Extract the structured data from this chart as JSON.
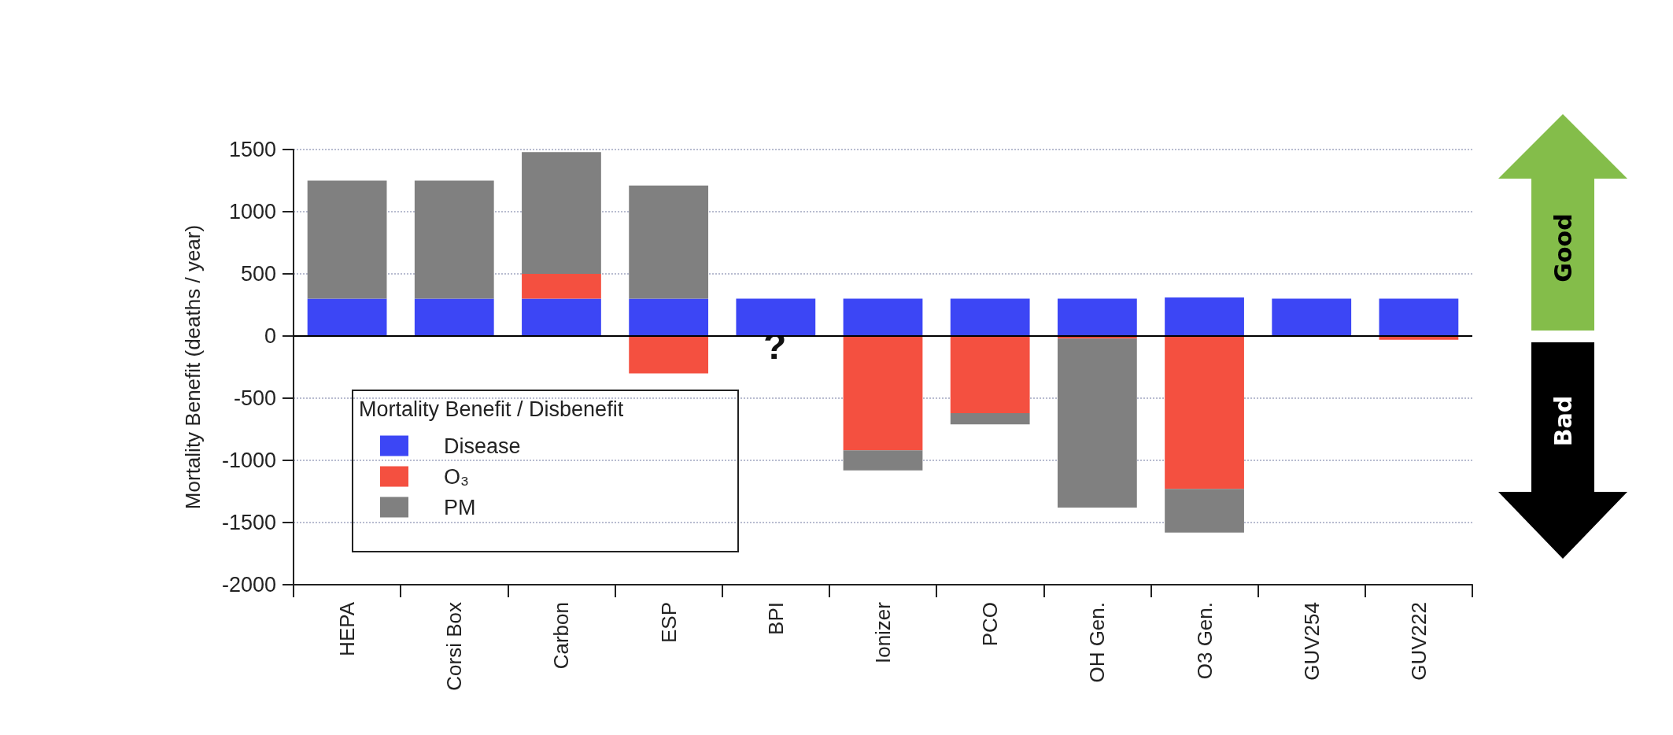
{
  "chart_data": {
    "type": "bar",
    "stacked": true,
    "ylabel": "Mortality Benefit (deaths / year)",
    "legend_title": "Mortality Benefit / Disbenefit",
    "categories": [
      "HEPA",
      "Corsi Box",
      "Carbon",
      "ESP",
      "BPI",
      "Ionizer",
      "PCO",
      "OH Gen.",
      "O3 Gen.",
      "GUV254",
      "GUV222"
    ],
    "series": [
      {
        "name": "Disease",
        "color": "#3c46f5",
        "values": [
          300,
          300,
          300,
          300,
          300,
          300,
          300,
          300,
          310,
          300,
          300
        ]
      },
      {
        "name": "O₃",
        "color": "#f45040",
        "values": [
          null,
          null,
          200,
          -300,
          null,
          -920,
          -620,
          -20,
          -1230,
          null,
          -30
        ]
      },
      {
        "name": "PM",
        "color": "#808080",
        "values": [
          950,
          950,
          980,
          910,
          null,
          -160,
          -90,
          -1360,
          -350,
          null,
          null
        ]
      }
    ],
    "ylim": [
      -2000,
      1500
    ],
    "yticks": [
      -2000,
      -1500,
      -1000,
      -500,
      0,
      500,
      1000,
      1500
    ],
    "grid": "y",
    "legend": "bottom left",
    "ref_lines": [
      {
        "axis": "y",
        "value": 0,
        "color": "#000000",
        "line_style": "solid"
      }
    ],
    "annotations": [
      "?",
      "Good",
      "Bad"
    ]
  }
}
